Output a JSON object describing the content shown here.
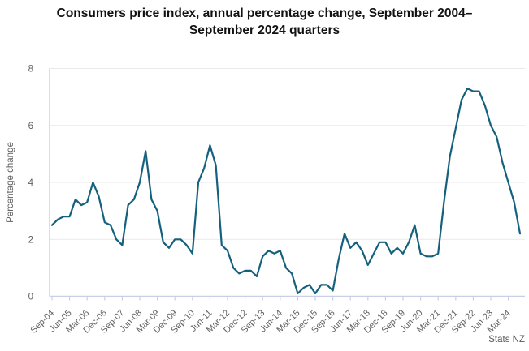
{
  "page": {
    "background": "#ffffff"
  },
  "chart_data": {
    "type": "line",
    "title": "Consumers price index, annual percentage change, September 2004–September 2024 quarters",
    "ylabel": "Percentage change",
    "xlabel": "",
    "source": "Stats NZ",
    "legend": "none",
    "grid": true,
    "ylim": [
      0,
      8
    ],
    "y_ticks": [
      0,
      2,
      4,
      6,
      8
    ],
    "frequency": "quarterly",
    "start_quarter": "Sep-04",
    "end_quarter": "Sep-24",
    "x_label_every": 3,
    "x_tick_labels": [
      "Sep-04",
      "Jun-05",
      "Mar-06",
      "Dec-06",
      "Sep-07",
      "Jun-08",
      "Mar-09",
      "Dec-09",
      "Sep-10",
      "Jun-11",
      "Mar-12",
      "Dec-12",
      "Sep-13",
      "Jun-14",
      "Mar-15",
      "Dec-15",
      "Sep-16",
      "Jun-17",
      "Mar-18",
      "Dec-18",
      "Sep-19",
      "Jun-20",
      "Mar-21",
      "Dec-21",
      "Sep-22",
      "Jun-23",
      "Mar-24"
    ],
    "series": [
      {
        "name": "CPI annual percentage change",
        "color": "#14607d",
        "values": [
          2.5,
          2.7,
          2.8,
          2.8,
          3.4,
          3.2,
          3.3,
          4.0,
          3.5,
          2.6,
          2.5,
          2.0,
          1.8,
          3.2,
          3.4,
          4.0,
          5.1,
          3.4,
          3.0,
          1.9,
          1.7,
          2.0,
          2.0,
          1.8,
          1.5,
          4.0,
          4.5,
          5.3,
          4.6,
          1.8,
          1.6,
          1.0,
          0.8,
          0.9,
          0.9,
          0.7,
          1.4,
          1.6,
          1.5,
          1.6,
          1.0,
          0.8,
          0.1,
          0.3,
          0.4,
          0.1,
          0.4,
          0.4,
          0.2,
          1.3,
          2.2,
          1.7,
          1.9,
          1.6,
          1.1,
          1.5,
          1.9,
          1.9,
          1.5,
          1.7,
          1.5,
          1.9,
          2.5,
          1.5,
          1.4,
          1.4,
          1.5,
          3.3,
          4.9,
          5.9,
          6.9,
          7.3,
          7.2,
          7.2,
          6.7,
          6.0,
          5.6,
          4.7,
          4.0,
          3.3,
          2.2
        ]
      }
    ],
    "colors": {
      "axis": "#c9cfe6",
      "grid": "#e9e9ec",
      "tick_text": "#616161",
      "title_text": "#121212"
    }
  }
}
